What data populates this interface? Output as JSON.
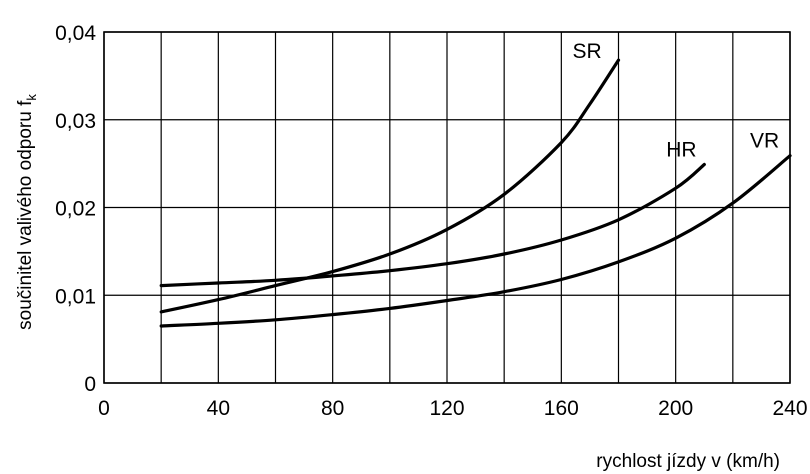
{
  "chart_data": {
    "type": "line",
    "title": "",
    "xlabel": "rychlost jízdy v (km/h)",
    "ylabel_main": "součinitel valivého odporu f",
    "ylabel_sub": "k",
    "xlim": [
      0,
      240
    ],
    "ylim": [
      0,
      0.04
    ],
    "x_ticks": [
      0,
      20,
      40,
      60,
      80,
      100,
      120,
      140,
      160,
      180,
      200,
      220,
      240
    ],
    "x_tick_labels": [
      "0",
      "",
      "40",
      "",
      "80",
      "",
      "120",
      "",
      "160",
      "",
      "200",
      "",
      "240"
    ],
    "y_ticks": [
      0,
      0.01,
      0.02,
      0.03,
      0.04
    ],
    "y_tick_labels": [
      "0",
      "0,01",
      "0,02",
      "0,03",
      "0,04"
    ],
    "grid": true,
    "legend": "none",
    "series": [
      {
        "name": "SR",
        "x": [
          20,
          40,
          60,
          80,
          100,
          120,
          140,
          160,
          170,
          180
        ],
        "y": [
          0.0081,
          0.0095,
          0.0111,
          0.0127,
          0.0147,
          0.0175,
          0.0215,
          0.0274,
          0.0318,
          0.0368
        ]
      },
      {
        "name": "HR",
        "x": [
          20,
          40,
          60,
          80,
          100,
          120,
          140,
          160,
          180,
          200,
          210
        ],
        "y": [
          0.0111,
          0.0114,
          0.0117,
          0.0122,
          0.0128,
          0.0136,
          0.0147,
          0.0163,
          0.0186,
          0.0222,
          0.0249
        ]
      },
      {
        "name": "VR",
        "x": [
          20,
          40,
          60,
          80,
          100,
          120,
          140,
          160,
          180,
          200,
          220,
          240
        ],
        "y": [
          0.0065,
          0.0068,
          0.0072,
          0.0078,
          0.0085,
          0.0094,
          0.0104,
          0.0118,
          0.0138,
          0.0165,
          0.0205,
          0.0259
        ]
      }
    ]
  }
}
